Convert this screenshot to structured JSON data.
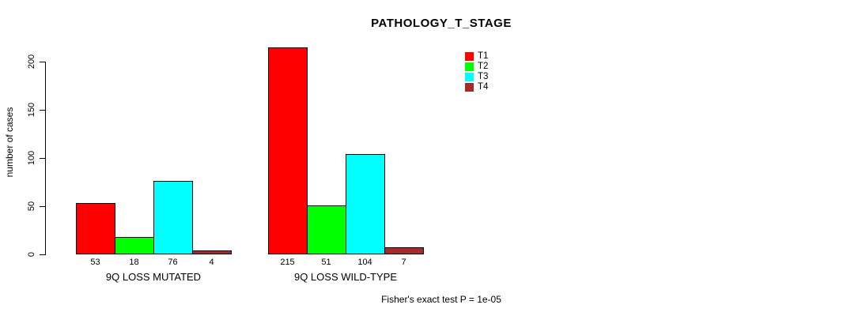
{
  "chart_data": {
    "type": "bar",
    "title": "PATHOLOGY_T_STAGE",
    "ylabel": "number of cases",
    "xlabel": "",
    "ylim": [
      0,
      200
    ],
    "yticks": [
      0,
      50,
      100,
      150,
      200
    ],
    "grid": false,
    "legend_position": "top-right",
    "categories": [
      "9Q LOSS MUTATED",
      "9Q LOSS WILD-TYPE"
    ],
    "series": [
      {
        "name": "T1",
        "color": "#FF0000",
        "values": [
          53,
          215
        ]
      },
      {
        "name": "T2",
        "color": "#00FF00",
        "values": [
          18,
          51
        ]
      },
      {
        "name": "T3",
        "color": "#00FFFF",
        "values": [
          76,
          104
        ]
      },
      {
        "name": "T4",
        "color": "#A52A2A",
        "values": [
          4,
          7
        ]
      }
    ],
    "bar_value_labels": [
      [
        53,
        18,
        76,
        4
      ],
      [
        215,
        51,
        104,
        7
      ]
    ],
    "footnote": "Fisher's exact test P = 1e-05"
  },
  "colors": {
    "background": "#FFFFFF",
    "axis": "#000000",
    "bar_border": "#000000"
  }
}
